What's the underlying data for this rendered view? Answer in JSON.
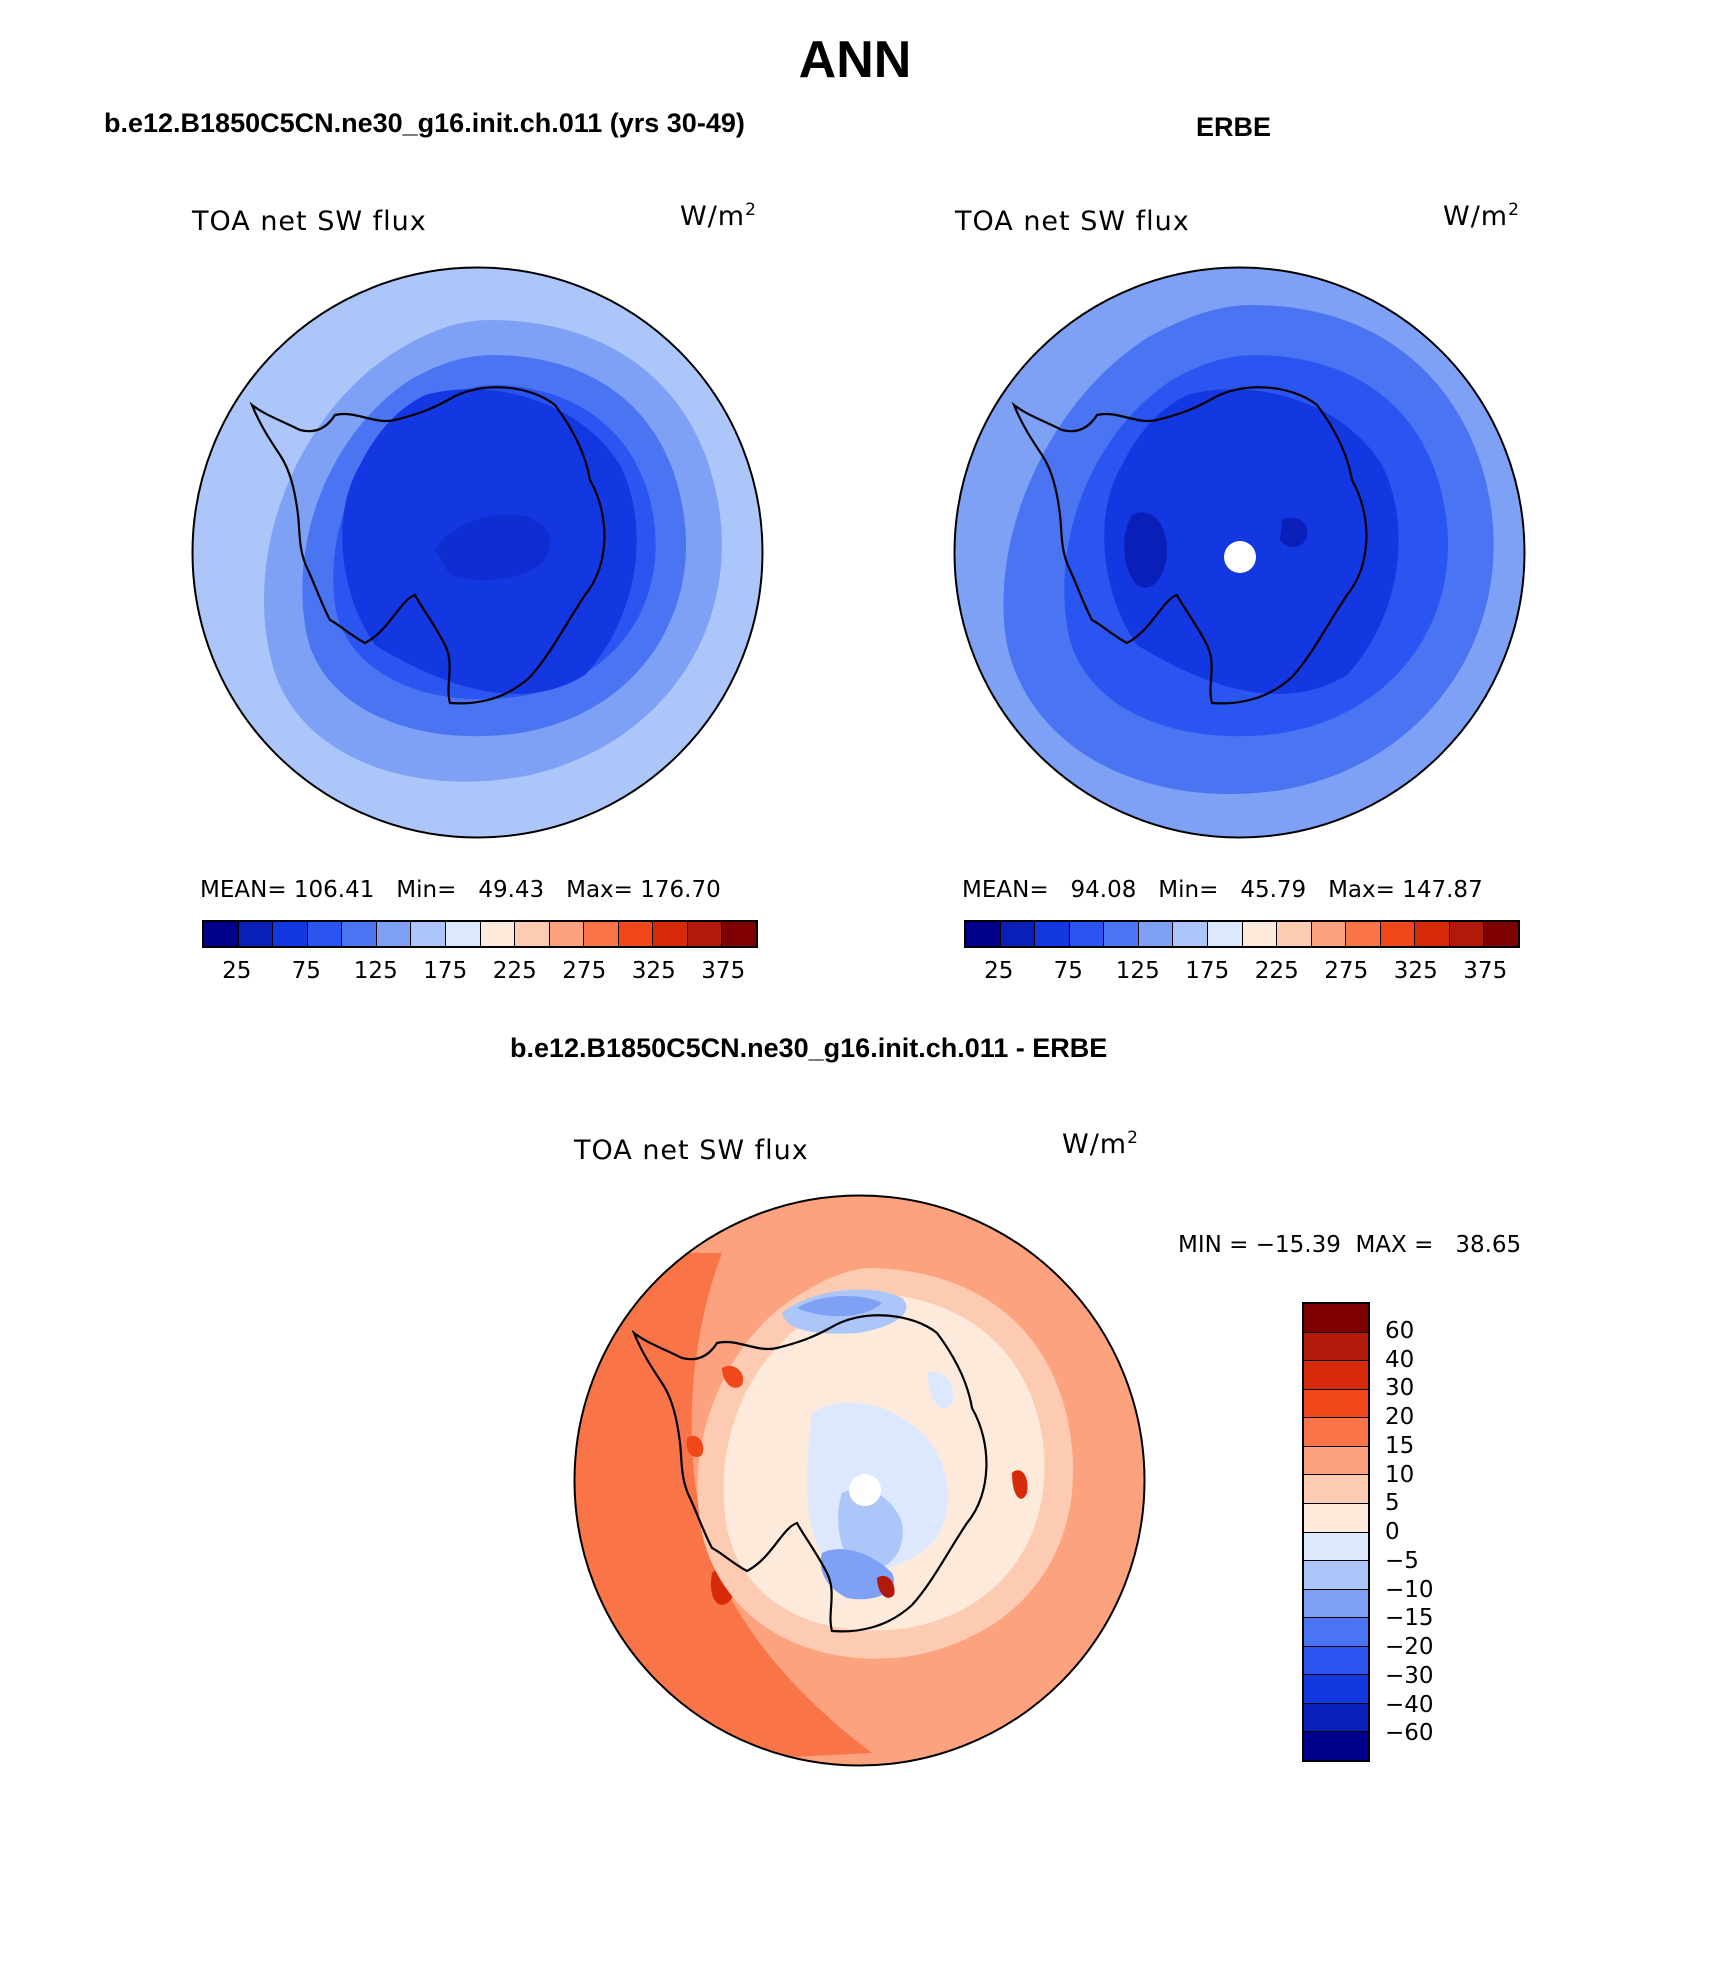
{
  "header": {
    "title": "ANN"
  },
  "panel_left": {
    "case_title": "b.e12.B1850C5CN.ne30_g16.init.ch.011 (yrs 30-49)",
    "field_label": "TOA net SW flux",
    "units_base": "W/m",
    "units_exp": "2",
    "stats": "MEAN= 106.41   Min=   49.43   Max= 176.70",
    "ticks": [
      "25",
      "75",
      "125",
      "175",
      "225",
      "275",
      "325",
      "375"
    ]
  },
  "panel_right": {
    "case_title": "ERBE",
    "field_label": "TOA net SW flux",
    "units_base": "W/m",
    "units_exp": "2",
    "stats": "MEAN=   94.08   Min=   45.79   Max= 147.87",
    "ticks": [
      "25",
      "75",
      "125",
      "175",
      "225",
      "275",
      "325",
      "375"
    ]
  },
  "panel_diff": {
    "case_title": "b.e12.B1850C5CN.ne30_g16.init.ch.011 - ERBE",
    "field_label": "TOA net SW flux",
    "units_base": "W/m",
    "units_exp": "2",
    "stats": "MIN = −15.39  MAX =   38.65",
    "ticks": [
      "60",
      "40",
      "30",
      "20",
      "15",
      "10",
      "5",
      "0",
      "−5",
      "−10",
      "−15",
      "−20",
      "−30",
      "−40",
      "−60"
    ]
  },
  "colors": {
    "abs_scale": [
      "#00008b",
      "#0a1fb8",
      "#1337e0",
      "#2a55f0",
      "#4a74f2",
      "#7ea1f6",
      "#adc6fa",
      "#dce8fd",
      "#feeadb",
      "#fdcbb1",
      "#fca27e",
      "#f97548",
      "#f0481a",
      "#d72a08",
      "#b2190a",
      "#7f0000"
    ],
    "diff_scale": [
      "#7f0000",
      "#b2190a",
      "#d72a08",
      "#f0481a",
      "#f97548",
      "#fca27e",
      "#fdcbb1",
      "#feeadb",
      "#dce8fd",
      "#adc6fa",
      "#7ea1f6",
      "#4a74f2",
      "#2a55f0",
      "#1337e0",
      "#0a1fb8",
      "#00008b"
    ]
  }
}
